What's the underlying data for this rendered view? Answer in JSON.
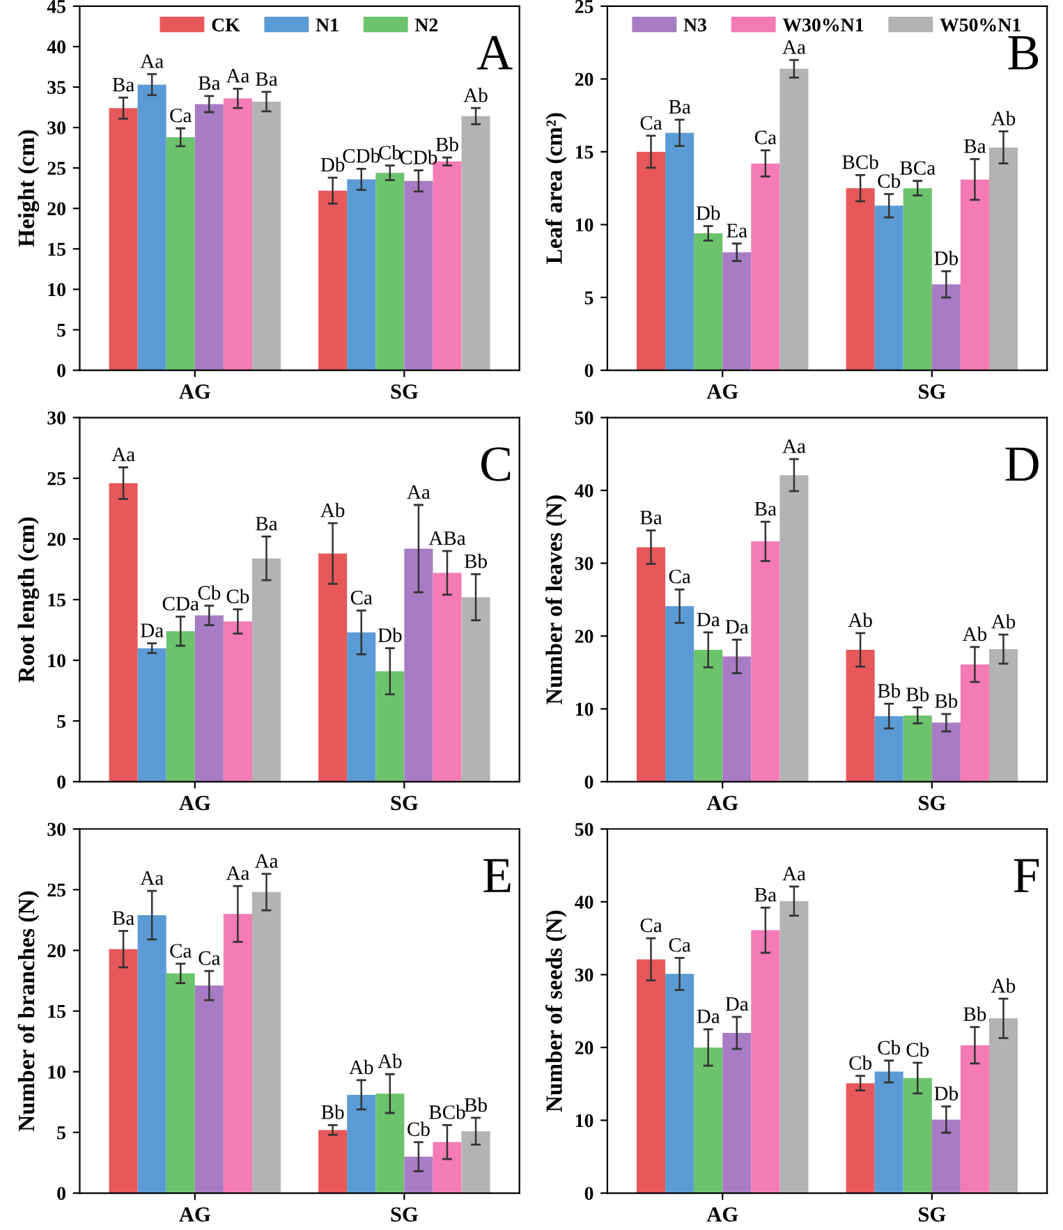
{
  "chart_data": [
    {
      "type": "bar",
      "ylabel": "Height (cm)",
      "categories": [
        "AG",
        "SG"
      ],
      "ylim": [
        0,
        45
      ],
      "yticks": [
        0,
        5,
        10,
        15,
        20,
        25,
        30,
        35,
        40,
        45
      ],
      "legend": "top",
      "annotations": [
        "A"
      ],
      "series": [
        {
          "name": "CK",
          "color": "#e8575a",
          "values": [
            32.4,
            22.2
          ],
          "errors": [
            1.3,
            1.6
          ],
          "value_labels": [
            "Ba",
            "Db"
          ]
        },
        {
          "name": "N1",
          "color": "#5b9bd5",
          "values": [
            35.3,
            23.6
          ],
          "errors": [
            1.3,
            1.3
          ],
          "value_labels": [
            "Aa",
            "CDb"
          ]
        },
        {
          "name": "N2",
          "color": "#6cc36c",
          "values": [
            28.8,
            24.4
          ],
          "errors": [
            1.1,
            0.9
          ],
          "value_labels": [
            "Ca",
            "Cb"
          ]
        },
        {
          "color": "#a77cc4",
          "values": [
            32.9,
            23.4
          ],
          "errors": [
            1.0,
            1.3
          ],
          "value_labels": [
            "Ba",
            "CDb"
          ]
        },
        {
          "color": "#f47bb5",
          "values": [
            33.6,
            25.8
          ],
          "errors": [
            1.2,
            0.5
          ],
          "value_labels": [
            "Aa",
            "Bb"
          ]
        },
        {
          "color": "#b3b3b3",
          "values": [
            33.2,
            31.4
          ],
          "errors": [
            1.2,
            1.0
          ],
          "value_labels": [
            "Ba",
            "Ab"
          ]
        }
      ]
    },
    {
      "type": "bar",
      "ylabel": "Leaf area (cm²)",
      "categories": [
        "AG",
        "SG"
      ],
      "ylim": [
        0,
        25
      ],
      "yticks": [
        0,
        5,
        10,
        15,
        20,
        25
      ],
      "legend": "top",
      "annotations": [
        "B"
      ],
      "series": [
        {
          "color": "#e8575a",
          "values": [
            15.0,
            12.5
          ],
          "errors": [
            1.1,
            0.9
          ],
          "value_labels": [
            "Ca",
            "BCb"
          ]
        },
        {
          "color": "#5b9bd5",
          "values": [
            16.3,
            11.3
          ],
          "errors": [
            0.9,
            0.8
          ],
          "value_labels": [
            "Ba",
            "Cb"
          ]
        },
        {
          "color": "#6cc36c",
          "values": [
            9.4,
            12.5
          ],
          "errors": [
            0.5,
            0.5
          ],
          "value_labels": [
            "Db",
            "BCa"
          ]
        },
        {
          "name": "N3",
          "color": "#a77cc4",
          "values": [
            8.1,
            5.9
          ],
          "errors": [
            0.6,
            0.9
          ],
          "value_labels": [
            "Ea",
            "Db"
          ]
        },
        {
          "name": "W30%N1",
          "color": "#f47bb5",
          "values": [
            14.2,
            13.1
          ],
          "errors": [
            0.9,
            1.4
          ],
          "value_labels": [
            "Ca",
            "Ba"
          ]
        },
        {
          "name": "W50%N1",
          "color": "#b3b3b3",
          "values": [
            20.7,
            15.3
          ],
          "errors": [
            0.6,
            1.1
          ],
          "value_labels": [
            "Aa",
            "Ab"
          ]
        }
      ]
    },
    {
      "type": "bar",
      "ylabel": "Root length (cm)",
      "categories": [
        "AG",
        "SG"
      ],
      "ylim": [
        0,
        30
      ],
      "yticks": [
        0,
        5,
        10,
        15,
        20,
        25,
        30
      ],
      "annotations": [
        "C"
      ],
      "series": [
        {
          "color": "#e8575a",
          "values": [
            24.6,
            18.8
          ],
          "errors": [
            1.3,
            2.5
          ],
          "value_labels": [
            "Aa",
            "Ab"
          ]
        },
        {
          "color": "#5b9bd5",
          "values": [
            11.0,
            12.3
          ],
          "errors": [
            0.4,
            1.8
          ],
          "value_labels": [
            "Da",
            "Ca"
          ]
        },
        {
          "color": "#6cc36c",
          "values": [
            12.4,
            9.1
          ],
          "errors": [
            1.2,
            1.9
          ],
          "value_labels": [
            "CDa",
            "Db"
          ]
        },
        {
          "color": "#a77cc4",
          "values": [
            13.7,
            19.2
          ],
          "errors": [
            0.8,
            3.6
          ],
          "value_labels": [
            "Cb",
            "Aa"
          ]
        },
        {
          "color": "#f47bb5",
          "values": [
            13.2,
            17.2
          ],
          "errors": [
            1.0,
            1.8
          ],
          "value_labels": [
            "Cb",
            "ABa"
          ]
        },
        {
          "color": "#b3b3b3",
          "values": [
            18.4,
            15.2
          ],
          "errors": [
            1.8,
            1.9
          ],
          "value_labels": [
            "Ba",
            "Bb"
          ]
        }
      ]
    },
    {
      "type": "bar",
      "ylabel": "Number of leaves (N)",
      "categories": [
        "AG",
        "SG"
      ],
      "ylim": [
        0,
        50
      ],
      "yticks": [
        0,
        10,
        20,
        30,
        40,
        50
      ],
      "annotations": [
        "D"
      ],
      "series": [
        {
          "color": "#e8575a",
          "values": [
            32.2,
            18.1
          ],
          "errors": [
            2.3,
            2.3
          ],
          "value_labels": [
            "Ba",
            "Ab"
          ]
        },
        {
          "color": "#5b9bd5",
          "values": [
            24.1,
            9.0
          ],
          "errors": [
            2.3,
            1.7
          ],
          "value_labels": [
            "Ca",
            "Bb"
          ]
        },
        {
          "color": "#6cc36c",
          "values": [
            18.1,
            9.1
          ],
          "errors": [
            2.4,
            1.1
          ],
          "value_labels": [
            "Da",
            "Bb"
          ]
        },
        {
          "color": "#a77cc4",
          "values": [
            17.2,
            8.1
          ],
          "errors": [
            2.3,
            1.2
          ],
          "value_labels": [
            "Da",
            "Bb"
          ]
        },
        {
          "color": "#f47bb5",
          "values": [
            33.0,
            16.1
          ],
          "errors": [
            2.7,
            2.4
          ],
          "value_labels": [
            "Ba",
            "Ab"
          ]
        },
        {
          "color": "#b3b3b3",
          "values": [
            42.1,
            18.2
          ],
          "errors": [
            2.2,
            2.0
          ],
          "value_labels": [
            "Aa",
            "Ab"
          ]
        }
      ]
    },
    {
      "type": "bar",
      "ylabel": "Number of branches (N)",
      "categories": [
        "AG",
        "SG"
      ],
      "ylim": [
        0,
        30
      ],
      "yticks": [
        0,
        5,
        10,
        15,
        20,
        25,
        30
      ],
      "annotations": [
        "E"
      ],
      "series": [
        {
          "color": "#e8575a",
          "values": [
            20.1,
            5.2
          ],
          "errors": [
            1.5,
            0.4
          ],
          "value_labels": [
            "Ba",
            "Bb"
          ]
        },
        {
          "color": "#5b9bd5",
          "values": [
            22.9,
            8.1
          ],
          "errors": [
            2.0,
            1.2
          ],
          "value_labels": [
            "Aa",
            "Ab"
          ]
        },
        {
          "color": "#6cc36c",
          "values": [
            18.1,
            8.2
          ],
          "errors": [
            0.8,
            1.6
          ],
          "value_labels": [
            "Ca",
            "Ab"
          ]
        },
        {
          "color": "#a77cc4",
          "values": [
            17.1,
            3.0
          ],
          "errors": [
            1.2,
            1.2
          ],
          "value_labels": [
            "Ca",
            "Cb"
          ]
        },
        {
          "color": "#f47bb5",
          "values": [
            23.0,
            4.2
          ],
          "errors": [
            2.3,
            1.4
          ],
          "value_labels": [
            "Aa",
            "BCb"
          ]
        },
        {
          "color": "#b3b3b3",
          "values": [
            24.8,
            5.1
          ],
          "errors": [
            1.5,
            1.1
          ],
          "value_labels": [
            "Aa",
            "Bb"
          ]
        }
      ]
    },
    {
      "type": "bar",
      "ylabel": "Number of seeds (N)",
      "categories": [
        "AG",
        "SG"
      ],
      "ylim": [
        0,
        50
      ],
      "yticks": [
        0,
        10,
        20,
        30,
        40,
        50
      ],
      "annotations": [
        "F"
      ],
      "series": [
        {
          "color": "#e8575a",
          "values": [
            32.1,
            15.1
          ],
          "errors": [
            2.9,
            1.0
          ],
          "value_labels": [
            "Ca",
            "Cb"
          ]
        },
        {
          "color": "#5b9bd5",
          "values": [
            30.1,
            16.7
          ],
          "errors": [
            2.2,
            1.5
          ],
          "value_labels": [
            "Ca",
            "Cb"
          ]
        },
        {
          "color": "#6cc36c",
          "values": [
            20.0,
            15.8
          ],
          "errors": [
            2.5,
            2.1
          ],
          "value_labels": [
            "Da",
            "Cb"
          ]
        },
        {
          "color": "#a77cc4",
          "values": [
            22.0,
            10.1
          ],
          "errors": [
            2.2,
            1.8
          ],
          "value_labels": [
            "Da",
            "Db"
          ]
        },
        {
          "color": "#f47bb5",
          "values": [
            36.1,
            20.3
          ],
          "errors": [
            3.1,
            2.5
          ],
          "value_labels": [
            "Ba",
            "Bb"
          ]
        },
        {
          "color": "#b3b3b3",
          "values": [
            40.1,
            24.0
          ],
          "errors": [
            2.0,
            2.7
          ],
          "value_labels": [
            "Aa",
            "Ab"
          ]
        }
      ]
    }
  ]
}
